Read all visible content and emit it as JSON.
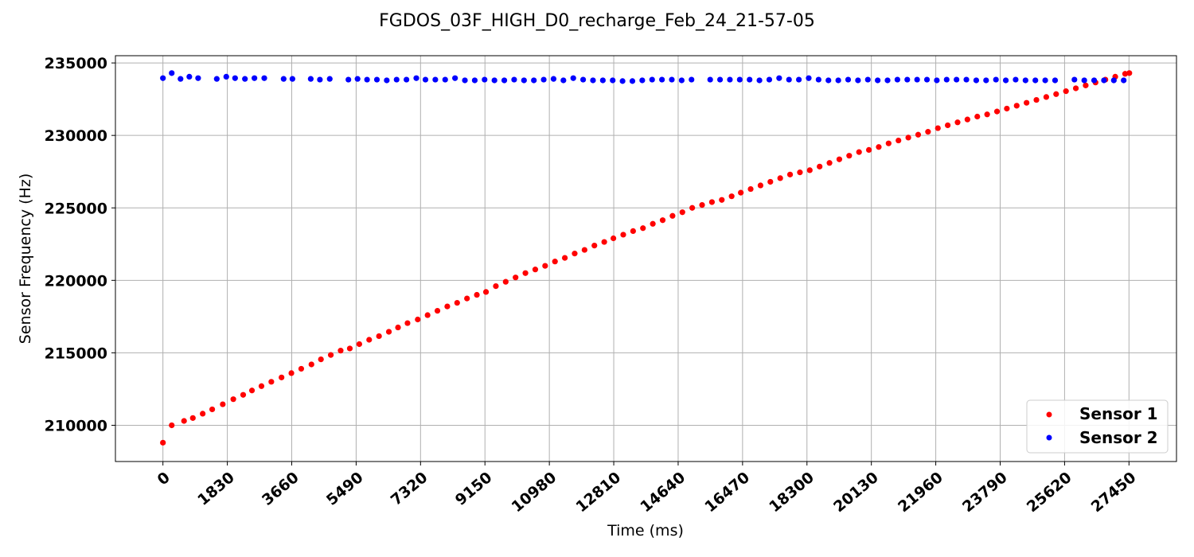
{
  "chart_data": {
    "type": "scatter",
    "title": "FGDOS_03F_HIGH_D0_recharge_Feb_24_21-57-05",
    "xlabel": "Time (ms)",
    "ylabel": "Sensor Frequency (Hz)",
    "xlim": [
      -1350,
      28800
    ],
    "ylim": [
      207500,
      235500
    ],
    "xticks": [
      0,
      1830,
      3660,
      5490,
      7320,
      9150,
      10980,
      12810,
      14640,
      16470,
      18300,
      20130,
      21960,
      23790,
      25620,
      27450
    ],
    "yticks": [
      210000,
      215000,
      220000,
      225000,
      230000,
      235000
    ],
    "grid": true,
    "legend_position": "lower-right",
    "series": [
      {
        "name": "Sensor 1",
        "color": "#ff0000",
        "start": [
          0,
          208800
        ],
        "points": [
          [
            250,
            210000
          ],
          [
            600,
            210300
          ],
          [
            850,
            210500
          ],
          [
            1130,
            210800
          ],
          [
            1400,
            211100
          ],
          [
            1700,
            211450
          ],
          [
            2000,
            211800
          ],
          [
            2280,
            212100
          ],
          [
            2530,
            212400
          ],
          [
            2800,
            212700
          ],
          [
            3080,
            213000
          ],
          [
            3370,
            213300
          ],
          [
            3650,
            213600
          ],
          [
            3930,
            213900
          ],
          [
            4220,
            214200
          ],
          [
            4490,
            214550
          ],
          [
            4770,
            214850
          ],
          [
            5050,
            215150
          ],
          [
            5310,
            215300
          ],
          [
            5580,
            215600
          ],
          [
            5860,
            215900
          ],
          [
            6140,
            216150
          ],
          [
            6420,
            216450
          ],
          [
            6680,
            216750
          ],
          [
            6950,
            217050
          ],
          [
            7240,
            217300
          ],
          [
            7520,
            217600
          ],
          [
            7800,
            217900
          ],
          [
            8080,
            218200
          ],
          [
            8360,
            218450
          ],
          [
            8640,
            218750
          ],
          [
            8920,
            219000
          ],
          [
            9180,
            219200
          ],
          [
            9460,
            219600
          ],
          [
            9740,
            219900
          ],
          [
            10020,
            220200
          ],
          [
            10300,
            220500
          ],
          [
            10580,
            220750
          ],
          [
            10860,
            221000
          ],
          [
            11140,
            221300
          ],
          [
            11420,
            221550
          ],
          [
            11700,
            221850
          ],
          [
            11980,
            222100
          ],
          [
            12260,
            222400
          ],
          [
            12540,
            222650
          ],
          [
            12800,
            222900
          ],
          [
            13080,
            223150
          ],
          [
            13360,
            223400
          ],
          [
            13640,
            223600
          ],
          [
            13920,
            223900
          ],
          [
            14200,
            224150
          ],
          [
            14480,
            224450
          ],
          [
            14760,
            224700
          ],
          [
            15040,
            225000
          ],
          [
            15320,
            225200
          ],
          [
            15600,
            225400
          ],
          [
            15880,
            225550
          ],
          [
            16160,
            225800
          ],
          [
            16420,
            226050
          ],
          [
            16700,
            226300
          ],
          [
            16980,
            226550
          ],
          [
            17260,
            226800
          ],
          [
            17540,
            227050
          ],
          [
            17820,
            227300
          ],
          [
            18100,
            227450
          ],
          [
            18380,
            227600
          ],
          [
            18660,
            227850
          ],
          [
            18940,
            228100
          ],
          [
            19220,
            228350
          ],
          [
            19500,
            228600
          ],
          [
            19780,
            228850
          ],
          [
            20060,
            229000
          ],
          [
            20340,
            229200
          ],
          [
            20620,
            229450
          ],
          [
            20900,
            229650
          ],
          [
            21180,
            229850
          ],
          [
            21460,
            230050
          ],
          [
            21740,
            230250
          ],
          [
            22020,
            230500
          ],
          [
            22300,
            230700
          ],
          [
            22580,
            230900
          ],
          [
            22860,
            231100
          ],
          [
            23140,
            231300
          ],
          [
            23420,
            231450
          ],
          [
            23700,
            231650
          ],
          [
            23980,
            231850
          ],
          [
            24260,
            232050
          ],
          [
            24540,
            232250
          ],
          [
            24820,
            232450
          ],
          [
            25100,
            232650
          ],
          [
            25380,
            232850
          ],
          [
            25660,
            233050
          ],
          [
            25940,
            233250
          ],
          [
            26220,
            233450
          ],
          [
            26500,
            233650
          ],
          [
            26780,
            233850
          ],
          [
            27060,
            234050
          ],
          [
            27340,
            234250
          ],
          [
            27460,
            234300
          ]
        ]
      },
      {
        "name": "Sensor 2",
        "color": "#0000ff",
        "points": [
          [
            0,
            233950
          ],
          [
            250,
            234300
          ],
          [
            500,
            233900
          ],
          [
            750,
            234050
          ],
          [
            1000,
            233950
          ],
          [
            1530,
            233900
          ],
          [
            1800,
            234050
          ],
          [
            2050,
            233950
          ],
          [
            2330,
            233900
          ],
          [
            2600,
            233950
          ],
          [
            2880,
            233950
          ],
          [
            3430,
            233900
          ],
          [
            3680,
            233900
          ],
          [
            4200,
            233900
          ],
          [
            4460,
            233850
          ],
          [
            4740,
            233900
          ],
          [
            5270,
            233850
          ],
          [
            5530,
            233900
          ],
          [
            5800,
            233850
          ],
          [
            6080,
            233850
          ],
          [
            6360,
            233800
          ],
          [
            6640,
            233850
          ],
          [
            6920,
            233850
          ],
          [
            7200,
            233950
          ],
          [
            7460,
            233850
          ],
          [
            7740,
            233850
          ],
          [
            8020,
            233850
          ],
          [
            8300,
            233950
          ],
          [
            8580,
            233800
          ],
          [
            8860,
            233800
          ],
          [
            9140,
            233850
          ],
          [
            9420,
            233800
          ],
          [
            9700,
            233800
          ],
          [
            9980,
            233850
          ],
          [
            10260,
            233800
          ],
          [
            10540,
            233800
          ],
          [
            10820,
            233850
          ],
          [
            11100,
            233900
          ],
          [
            11380,
            233800
          ],
          [
            11660,
            233950
          ],
          [
            11940,
            233850
          ],
          [
            12220,
            233800
          ],
          [
            12500,
            233800
          ],
          [
            12780,
            233800
          ],
          [
            13060,
            233750
          ],
          [
            13340,
            233750
          ],
          [
            13620,
            233800
          ],
          [
            13900,
            233850
          ],
          [
            14180,
            233850
          ],
          [
            14460,
            233850
          ],
          [
            14740,
            233800
          ],
          [
            15020,
            233850
          ],
          [
            15550,
            233850
          ],
          [
            15830,
            233850
          ],
          [
            16110,
            233850
          ],
          [
            16390,
            233850
          ],
          [
            16670,
            233850
          ],
          [
            16950,
            233800
          ],
          [
            17230,
            233850
          ],
          [
            17510,
            233950
          ],
          [
            17790,
            233850
          ],
          [
            18070,
            233850
          ],
          [
            18350,
            233950
          ],
          [
            18630,
            233850
          ],
          [
            18910,
            233800
          ],
          [
            19190,
            233800
          ],
          [
            19470,
            233850
          ],
          [
            19750,
            233800
          ],
          [
            20030,
            233850
          ],
          [
            20310,
            233800
          ],
          [
            20590,
            233800
          ],
          [
            20870,
            233850
          ],
          [
            21150,
            233850
          ],
          [
            21430,
            233850
          ],
          [
            21710,
            233850
          ],
          [
            21990,
            233800
          ],
          [
            22270,
            233850
          ],
          [
            22550,
            233850
          ],
          [
            22830,
            233850
          ],
          [
            23110,
            233800
          ],
          [
            23390,
            233800
          ],
          [
            23670,
            233850
          ],
          [
            23950,
            233800
          ],
          [
            24230,
            233850
          ],
          [
            24510,
            233800
          ],
          [
            24790,
            233800
          ],
          [
            25070,
            233800
          ],
          [
            25350,
            233800
          ],
          [
            25900,
            233850
          ],
          [
            26180,
            233800
          ],
          [
            26460,
            233800
          ],
          [
            26740,
            233800
          ],
          [
            27020,
            233800
          ],
          [
            27300,
            233800
          ]
        ]
      }
    ]
  }
}
